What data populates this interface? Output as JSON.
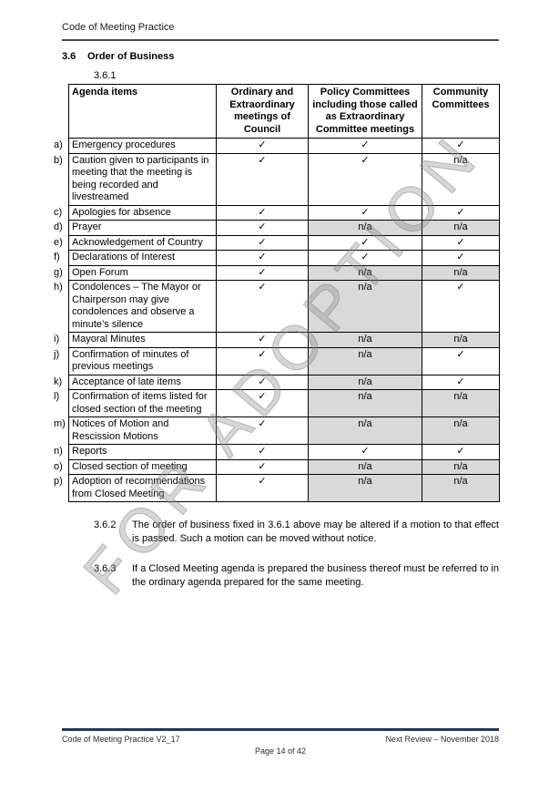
{
  "header": {
    "title": "Code of Meeting Practice"
  },
  "watermark": "FOR ADOPTION",
  "section": {
    "number": "3.6",
    "title": "Order of Business",
    "table_clause": "3.6.1"
  },
  "colors": {
    "footer_rule": "#1f3864",
    "header_rule": "#4a4a52",
    "shaded_cell": "#d9d9d9",
    "watermark_gray": "#878787"
  },
  "table": {
    "headers": [
      "Agenda items",
      "Ordinary and Extraordinary meetings of Council",
      "Policy Committees including those called as Extraordinary Committee meetings",
      "Community Committees"
    ],
    "rows": [
      {
        "label": "a)",
        "item": "Emergency procedures",
        "cells": [
          {
            "text": "✓",
            "shaded": false
          },
          {
            "text": "✓",
            "shaded": false
          },
          {
            "text": "✓",
            "shaded": false
          }
        ]
      },
      {
        "label": "b)",
        "item": "Caution given to participants in meeting that the meeting is being recorded and livestreamed",
        "cells": [
          {
            "text": "✓",
            "shaded": false
          },
          {
            "text": "✓",
            "shaded": false
          },
          {
            "text": "n/a",
            "shaded": false
          }
        ]
      },
      {
        "label": "c)",
        "item": "Apologies for absence",
        "cells": [
          {
            "text": "✓",
            "shaded": false
          },
          {
            "text": "✓",
            "shaded": false
          },
          {
            "text": "✓",
            "shaded": false
          }
        ]
      },
      {
        "label": "d)",
        "item": "Prayer",
        "cells": [
          {
            "text": "✓",
            "shaded": false
          },
          {
            "text": "n/a",
            "shaded": true
          },
          {
            "text": "n/a",
            "shaded": true
          }
        ]
      },
      {
        "label": "e)",
        "item": "Acknowledgement of Country",
        "cells": [
          {
            "text": "✓",
            "shaded": false
          },
          {
            "text": "✓",
            "shaded": false
          },
          {
            "text": "✓",
            "shaded": false
          }
        ]
      },
      {
        "label": "f)",
        "item": "Declarations of Interest",
        "cells": [
          {
            "text": "✓",
            "shaded": false
          },
          {
            "text": "✓",
            "shaded": false
          },
          {
            "text": "✓",
            "shaded": false
          }
        ]
      },
      {
        "label": "g)",
        "item": "Open Forum",
        "cells": [
          {
            "text": "✓",
            "shaded": false
          },
          {
            "text": "n/a",
            "shaded": true
          },
          {
            "text": "n/a",
            "shaded": true
          }
        ]
      },
      {
        "label": "h)",
        "item": "Condolences – The Mayor or Chairperson may give condolences and observe a minute’s silence",
        "cells": [
          {
            "text": "✓",
            "shaded": false
          },
          {
            "text": "n/a",
            "shaded": true
          },
          {
            "text": "✓",
            "shaded": false
          }
        ]
      },
      {
        "label": "i)",
        "item": "Mayoral Minutes",
        "cells": [
          {
            "text": "✓",
            "shaded": false
          },
          {
            "text": "n/a",
            "shaded": true
          },
          {
            "text": "n/a",
            "shaded": true
          }
        ]
      },
      {
        "label": "j)",
        "item": "Confirmation of minutes of previous meetings",
        "cells": [
          {
            "text": "✓",
            "shaded": false
          },
          {
            "text": "n/a",
            "shaded": true
          },
          {
            "text": "✓",
            "shaded": false
          }
        ]
      },
      {
        "label": "k)",
        "item": "Acceptance of late items",
        "cells": [
          {
            "text": "✓",
            "shaded": false
          },
          {
            "text": "n/a",
            "shaded": true
          },
          {
            "text": "✓",
            "shaded": false
          }
        ]
      },
      {
        "label": "l)",
        "item": "Confirmation of items listed for closed section of the meeting",
        "cells": [
          {
            "text": "✓",
            "shaded": false
          },
          {
            "text": "n/a",
            "shaded": true
          },
          {
            "text": "n/a",
            "shaded": true
          }
        ]
      },
      {
        "label": "m)",
        "item": "Notices of Motion and Rescission Motions",
        "cells": [
          {
            "text": "✓",
            "shaded": false
          },
          {
            "text": "n/a",
            "shaded": true
          },
          {
            "text": "n/a",
            "shaded": true
          }
        ]
      },
      {
        "label": "n)",
        "item": "Reports",
        "cells": [
          {
            "text": "✓",
            "shaded": false
          },
          {
            "text": "✓",
            "shaded": false
          },
          {
            "text": "✓",
            "shaded": false
          }
        ]
      },
      {
        "label": "o)",
        "item": "Closed section of meeting",
        "cells": [
          {
            "text": "✓",
            "shaded": false
          },
          {
            "text": "n/a",
            "shaded": true
          },
          {
            "text": "n/a",
            "shaded": true
          }
        ]
      },
      {
        "label": "p)",
        "item": "Adoption of recommendations from Closed Meeting",
        "cells": [
          {
            "text": "✓",
            "shaded": false
          },
          {
            "text": "n/a",
            "shaded": true
          },
          {
            "text": "n/a",
            "shaded": true
          }
        ]
      }
    ]
  },
  "clauses": [
    {
      "number": "3.6.2",
      "text": "The order of business fixed in 3.6.1 above may be altered if a motion to that effect is passed.  Such a motion can be moved without notice."
    },
    {
      "number": "3.6.3",
      "text": "If a Closed Meeting agenda is prepared the business thereof must be referred to in the ordinary agenda prepared for the same meeting."
    }
  ],
  "footer": {
    "left": "Code of Meeting Practice V2_17",
    "right": "Next Review – November 2018",
    "page": "Page 14 of 42"
  }
}
